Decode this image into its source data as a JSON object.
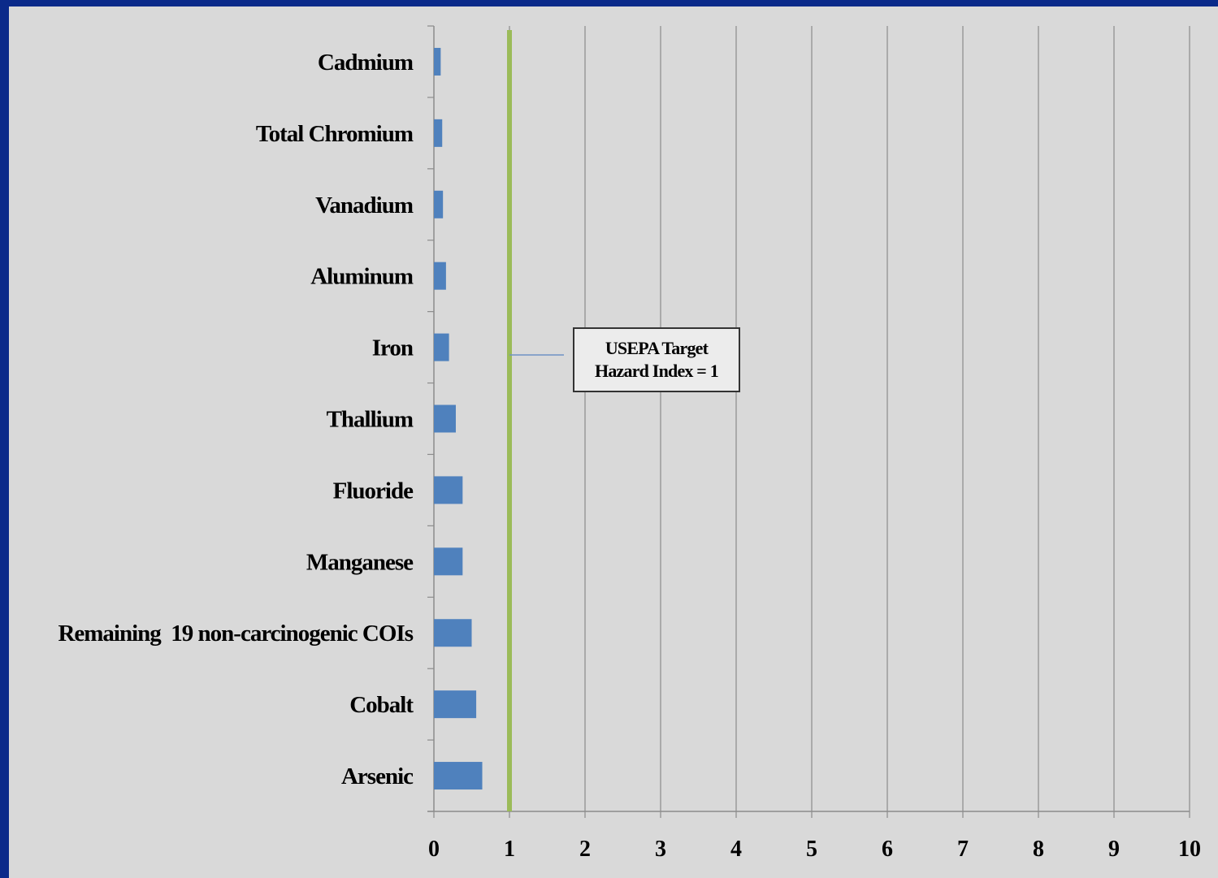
{
  "chart_data": {
    "type": "bar",
    "orientation": "horizontal",
    "categories": [
      "Cadmium",
      "Total Chromium",
      "Vanadium",
      "Aluminum",
      "Iron",
      "Thallium",
      "Fluoride",
      "Manganese",
      "Remaining  19 non-carcinogenic COIs",
      "Cobalt",
      "Arsenic"
    ],
    "values": [
      0.09,
      0.11,
      0.12,
      0.16,
      0.2,
      0.29,
      0.38,
      0.38,
      0.5,
      0.56,
      0.64
    ],
    "xlim": [
      0,
      10
    ],
    "xticks": [
      "0",
      "1",
      "2",
      "3",
      "4",
      "5",
      "6",
      "7",
      "8",
      "9",
      "10"
    ],
    "grid": "vertical",
    "bar_color": "#4f81bd",
    "reference_line": {
      "x": 1,
      "color": "#9bbb59",
      "annotation": "USEPA Target\nHazard Index = 1"
    },
    "title": "",
    "xlabel": "",
    "ylabel": ""
  }
}
